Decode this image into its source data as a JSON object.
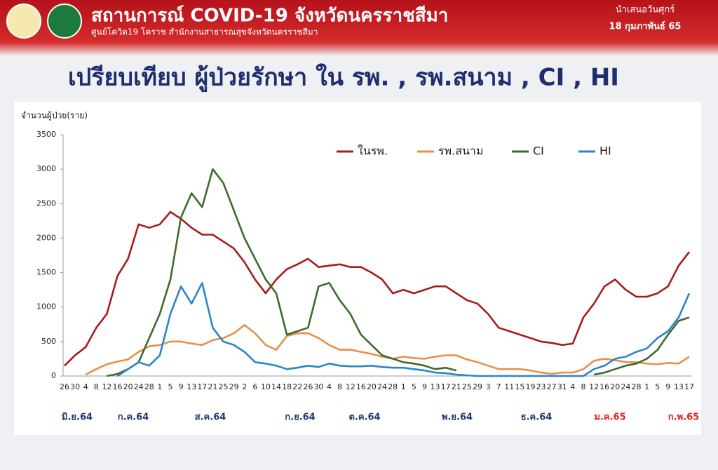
{
  "header": {
    "title": "สถานการณ์ COVID-19 จังหวัดนครราชสีมา",
    "subtitle": "ศูนย์โควิด19 โคราช สำนักงานสาธารณสุขจังหวัดนครราชสีมา",
    "date_line1": "นำเสนอวันศุกร์",
    "date_line2": "18 กุมภาพันธ์ 65"
  },
  "chart_data": {
    "type": "line",
    "title": "เปรียบเทียบ ผู้ป่วยรักษา ใน รพ. , รพ.สนาม , CI , HI",
    "y_label": "จำนวนผู้ป่วย(ราย)",
    "categories": [
      "26",
      "30",
      "4",
      "8",
      "12",
      "16",
      "20",
      "24",
      "28",
      "1",
      "5",
      "9",
      "13",
      "17",
      "21",
      "25",
      "29",
      "2",
      "6",
      "10",
      "14",
      "18",
      "22",
      "26",
      "30",
      "4",
      "8",
      "12",
      "16",
      "20",
      "24",
      "28",
      "1",
      "5",
      "9",
      "13",
      "17",
      "21",
      "25",
      "29",
      "3",
      "7",
      "11",
      "15",
      "19",
      "23",
      "27",
      "31",
      "4",
      "8",
      "12",
      "16",
      "20",
      "24",
      "28",
      "1",
      "5",
      "9",
      "13",
      "17"
    ],
    "month_labels": [
      {
        "text": "มิ.ย.64",
        "color": "#1f3a6e"
      },
      {
        "text": "ก.ค.64",
        "color": "#1f3a6e"
      },
      {
        "text": "ส.ค.64",
        "color": "#1f3a6e"
      },
      {
        "text": "ก.ย.64",
        "color": "#1f3a6e"
      },
      {
        "text": "ต.ค.64",
        "color": "#1f3a6e"
      },
      {
        "text": "พ.ย.64",
        "color": "#1f3a6e"
      },
      {
        "text": "ธ.ค.64",
        "color": "#1f3a6e"
      },
      {
        "text": "ม.ค.65",
        "color": "#e02020"
      },
      {
        "text": "ก.พ.65",
        "color": "#e02020"
      }
    ],
    "series": [
      {
        "name": "ในรพ.",
        "color": "#a61c1c",
        "values": [
          150,
          300,
          420,
          700,
          900,
          1450,
          1700,
          2200,
          2150,
          2200,
          2380,
          2280,
          2150,
          2050,
          2050,
          1950,
          1850,
          1650,
          1400,
          1200,
          1400,
          1550,
          1620,
          1700,
          1580,
          1600,
          1620,
          1580,
          1580,
          1500,
          1400,
          1200,
          1250,
          1200,
          1250,
          1300,
          1300,
          1200,
          1100,
          1050,
          900,
          700,
          650,
          600,
          550,
          500,
          480,
          450,
          470,
          850,
          1050,
          1300,
          1400,
          1250,
          1150,
          1150,
          1200,
          1300,
          1600,
          1800
        ]
      },
      {
        "name": "รพ.สนาม",
        "color": "#e8904a",
        "values": [
          null,
          null,
          20,
          100,
          170,
          210,
          240,
          350,
          430,
          450,
          500,
          500,
          470,
          450,
          520,
          550,
          620,
          740,
          620,
          450,
          380,
          580,
          620,
          620,
          550,
          450,
          380,
          380,
          350,
          320,
          280,
          250,
          280,
          260,
          250,
          280,
          300,
          300,
          240,
          200,
          150,
          100,
          100,
          100,
          80,
          50,
          30,
          50,
          50,
          100,
          220,
          250,
          230,
          200,
          200,
          180,
          170,
          190,
          180,
          280
        ]
      },
      {
        "name": "CI",
        "color": "#3d6b2a",
        "values": [
          null,
          null,
          null,
          null,
          0,
          30,
          100,
          200,
          550,
          900,
          1400,
          2300,
          2650,
          2450,
          3000,
          2800,
          2400,
          2000,
          1700,
          1400,
          1200,
          600,
          650,
          700,
          1300,
          1350,
          1100,
          900,
          600,
          450,
          300,
          250,
          200,
          180,
          150,
          100,
          120,
          80,
          null,
          null,
          null,
          null,
          null,
          null,
          null,
          null,
          null,
          null,
          null,
          null,
          20,
          50,
          100,
          150,
          180,
          250,
          380,
          600,
          800,
          850
        ]
      },
      {
        "name": "HI",
        "color": "#2a86c8",
        "values": [
          null,
          null,
          null,
          null,
          null,
          0,
          100,
          200,
          150,
          300,
          900,
          1300,
          1050,
          1350,
          700,
          500,
          450,
          350,
          200,
          180,
          150,
          100,
          120,
          150,
          130,
          180,
          150,
          140,
          140,
          150,
          130,
          120,
          120,
          100,
          80,
          50,
          40,
          20,
          10,
          0,
          0,
          0,
          0,
          0,
          0,
          0,
          0,
          0,
          0,
          0,
          100,
          150,
          250,
          280,
          350,
          400,
          550,
          650,
          850,
          1200
        ]
      }
    ],
    "ylim": [
      0,
      3500
    ],
    "yticks": [
      0,
      500,
      1000,
      1500,
      2000,
      2500,
      3000,
      3500
    ],
    "grid": false
  }
}
